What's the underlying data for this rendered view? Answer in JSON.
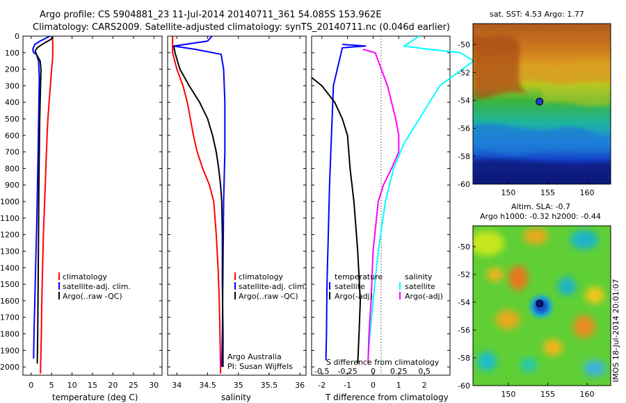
{
  "header": {
    "line1": "Argo profile: CS 5904881_23 11-Jul-2014 20140711_361 54.085S 153.962E",
    "line2": "Climatology: CARS2009. Satellite-adjusted climatology: synTS_20140711.nc (0.046d earlier)"
  },
  "chart_data": [
    {
      "type": "line",
      "panel": "temperature",
      "xlabel": "temperature (deg C)",
      "ylabel": "",
      "xlim": [
        -2,
        32
      ],
      "ylim": [
        2050,
        0
      ],
      "xticks": [
        "0",
        "5",
        "10",
        "15",
        "20",
        "25",
        "30"
      ],
      "yticks": [
        "0",
        "100",
        "200",
        "300",
        "400",
        "500",
        "600",
        "700",
        "800",
        "900",
        "1000",
        "1100",
        "1200",
        "1300",
        "1400",
        "1500",
        "1600",
        "1700",
        "1800",
        "1900",
        "2000"
      ],
      "legend": [
        "climatology",
        "satellite-adj. clim.",
        "Argo(..raw -QC)"
      ],
      "series": [
        {
          "name": "climatology",
          "color": "#ff0000",
          "points": [
            [
              5.2,
              5
            ],
            [
              5.3,
              50
            ],
            [
              5.3,
              100
            ],
            [
              5.2,
              150
            ],
            [
              5.0,
              200
            ],
            [
              4.7,
              300
            ],
            [
              4.4,
              400
            ],
            [
              4.1,
              500
            ],
            [
              3.9,
              600
            ],
            [
              3.6,
              800
            ],
            [
              3.3,
              1000
            ],
            [
              3.0,
              1200
            ],
            [
              2.8,
              1400
            ],
            [
              2.6,
              1600
            ],
            [
              2.5,
              1800
            ],
            [
              2.3,
              2000
            ],
            [
              2.3,
              2040
            ]
          ]
        },
        {
          "name": "satellite-adj. clim.",
          "color": "#0000ff",
          "points": [
            [
              4.6,
              0
            ],
            [
              3.8,
              10
            ],
            [
              2.2,
              30
            ],
            [
              0.9,
              50
            ],
            [
              0.4,
              80
            ],
            [
              0.6,
              100
            ],
            [
              1.3,
              110
            ],
            [
              1.8,
              150
            ],
            [
              2.0,
              250
            ],
            [
              1.9,
              400
            ],
            [
              1.7,
              700
            ],
            [
              1.4,
              1100
            ],
            [
              1.0,
              1500
            ],
            [
              0.7,
              1800
            ],
            [
              0.6,
              1950
            ]
          ]
        },
        {
          "name": "Argo(..raw -QC)",
          "color": "#000000",
          "points": [
            [
              5.4,
              5
            ],
            [
              4.8,
              20
            ],
            [
              3.0,
              45
            ],
            [
              1.5,
              70
            ],
            [
              1.0,
              90
            ],
            [
              1.3,
              110
            ],
            [
              2.2,
              150
            ],
            [
              2.4,
              200
            ],
            [
              2.3,
              300
            ],
            [
              2.1,
              500
            ],
            [
              2.0,
              700
            ],
            [
              1.9,
              900
            ],
            [
              1.8,
              1200
            ],
            [
              1.7,
              1500
            ],
            [
              1.6,
              1800
            ],
            [
              1.5,
              1980
            ]
          ]
        }
      ]
    },
    {
      "type": "line",
      "panel": "salinity",
      "xlabel": "salinity",
      "ylabel": "",
      "xlim": [
        33.85,
        36.1
      ],
      "ylim": [
        2050,
        0
      ],
      "xticks": [
        "34",
        "34.5",
        "35",
        "35.5",
        "36"
      ],
      "legend": [
        "climatology",
        "satellite-adj. clim.",
        "Argo(..raw -QC)"
      ],
      "annotations": [
        "Argo Australia",
        "PI: Susan Wijffels"
      ],
      "series": [
        {
          "name": "climatology",
          "color": "#ff0000",
          "points": [
            [
              33.93,
              0
            ],
            [
              33.93,
              100
            ],
            [
              34.0,
              200
            ],
            [
              34.1,
              300
            ],
            [
              34.17,
              400
            ],
            [
              34.22,
              500
            ],
            [
              34.27,
              600
            ],
            [
              34.33,
              700
            ],
            [
              34.42,
              800
            ],
            [
              34.53,
              900
            ],
            [
              34.6,
              1000
            ],
            [
              34.64,
              1200
            ],
            [
              34.67,
              1400
            ],
            [
              34.69,
              1600
            ],
            [
              34.7,
              1800
            ],
            [
              34.71,
              2000
            ],
            [
              34.71,
              2040
            ]
          ]
        },
        {
          "name": "satellite-adj. clim.",
          "color": "#0000ff",
          "points": [
            [
              34.57,
              0
            ],
            [
              34.5,
              30
            ],
            [
              33.95,
              60
            ],
            [
              34.3,
              80
            ],
            [
              34.72,
              110
            ],
            [
              34.76,
              200
            ],
            [
              34.78,
              400
            ],
            [
              34.78,
              700
            ],
            [
              34.76,
              1000
            ],
            [
              34.75,
              1400
            ],
            [
              34.74,
              1800
            ],
            [
              34.73,
              2000
            ]
          ]
        },
        {
          "name": "Argo(..raw -QC)",
          "color": "#000000",
          "points": [
            [
              33.95,
              60
            ],
            [
              33.97,
              100
            ],
            [
              34.05,
              200
            ],
            [
              34.2,
              300
            ],
            [
              34.37,
              400
            ],
            [
              34.5,
              500
            ],
            [
              34.58,
              600
            ],
            [
              34.64,
              700
            ],
            [
              34.68,
              800
            ],
            [
              34.71,
              900
            ],
            [
              34.73,
              1000
            ],
            [
              34.74,
              1200
            ],
            [
              34.74,
              1500
            ],
            [
              34.75,
              1800
            ],
            [
              34.75,
              2000
            ]
          ]
        }
      ]
    },
    {
      "type": "line",
      "panel": "difference",
      "xlabel": "T difference from climatology",
      "xlabel_top": "S difference from climatology",
      "xlim": [
        -2.4,
        3.0
      ],
      "ylim": [
        2050,
        0
      ],
      "xticks_T": [
        "-2",
        "-1",
        "0",
        "1",
        "2"
      ],
      "xticks_S": [
        "-0.5",
        "-0.25",
        "0",
        "0.25",
        "0.5"
      ],
      "legend_headers": [
        "temperature",
        "salinity"
      ],
      "legend": [
        "satellite",
        "Argo(-adj)",
        "satellite",
        "Argo(-adj)"
      ],
      "series": [
        {
          "name": "satellite",
          "group": "temperature",
          "color": "#0000ff",
          "points": [
            [
              -1.2,
              50
            ],
            [
              -0.3,
              60
            ],
            [
              -1.2,
              70
            ],
            [
              -1.55,
              300
            ],
            [
              -1.6,
              500
            ],
            [
              -1.65,
              700
            ],
            [
              -1.7,
              900
            ],
            [
              -1.75,
              1200
            ],
            [
              -1.8,
              1500
            ],
            [
              -1.82,
              1800
            ],
            [
              -1.84,
              1960
            ]
          ]
        },
        {
          "name": "Argo(-adj)",
          "group": "temperature",
          "color": "#000000",
          "points": [
            [
              -2.4,
              250
            ],
            [
              -2.0,
              300
            ],
            [
              -1.5,
              400
            ],
            [
              -1.2,
              500
            ],
            [
              -1.0,
              600
            ],
            [
              -0.9,
              800
            ],
            [
              -0.75,
              1000
            ],
            [
              -0.6,
              1300
            ],
            [
              -0.5,
              1600
            ],
            [
              -0.55,
              1800
            ],
            [
              -0.6,
              1980
            ]
          ]
        },
        {
          "name": "satellite",
          "group": "salinity",
          "color": "#00ffff",
          "points": [
            [
              0.45,
              0
            ],
            [
              0.3,
              60
            ],
            [
              0.55,
              80
            ],
            [
              0.85,
              100
            ],
            [
              0.98,
              150
            ],
            [
              0.65,
              300
            ],
            [
              0.45,
              500
            ],
            [
              0.3,
              650
            ],
            [
              0.2,
              800
            ],
            [
              0.12,
              1000
            ],
            [
              0.05,
              1300
            ],
            [
              0.0,
              1600
            ],
            [
              -0.03,
              1800
            ],
            [
              -0.05,
              1950
            ]
          ]
        },
        {
          "name": "Argo(-adj)",
          "group": "salinity",
          "color": "#ff00ff",
          "points": [
            [
              -0.1,
              80
            ],
            [
              0.02,
              100
            ],
            [
              0.08,
              200
            ],
            [
              0.14,
              300
            ],
            [
              0.18,
              400
            ],
            [
              0.22,
              500
            ],
            [
              0.25,
              600
            ],
            [
              0.25,
              700
            ],
            [
              0.18,
              800
            ],
            [
              0.1,
              900
            ],
            [
              0.05,
              1000
            ],
            [
              0.0,
              1300
            ],
            [
              -0.02,
              1600
            ],
            [
              -0.04,
              1800
            ],
            [
              -0.05,
              1980
            ]
          ]
        }
      ]
    },
    {
      "type": "heatmap",
      "panel": "sst-map",
      "title": "sat. SST: 4.53 Argo: 1.77",
      "xlim": [
        145.5,
        163
      ],
      "ylim": [
        -60,
        -48.5
      ],
      "xticks": [
        "150",
        "155",
        "160"
      ],
      "yticks": [
        "-50",
        "-52",
        "-54",
        "-56",
        "-58",
        "-60"
      ],
      "marker": [
        153.962,
        -54.085
      ]
    },
    {
      "type": "heatmap",
      "panel": "sla-map",
      "title": "Altim. SLA: -0.7",
      "subtitle": "Argo h1000: -0.32 h2000: -0.44",
      "side_label": "IMOS 18-Jul-2014 20:01:07",
      "xlim": [
        145.5,
        163
      ],
      "ylim": [
        -60,
        -48.5
      ],
      "xticks": [
        "150",
        "155",
        "160"
      ],
      "yticks": [
        "-50",
        "-52",
        "-54",
        "-56",
        "-58",
        "-60"
      ],
      "marker": [
        153.962,
        -54.085
      ]
    }
  ]
}
